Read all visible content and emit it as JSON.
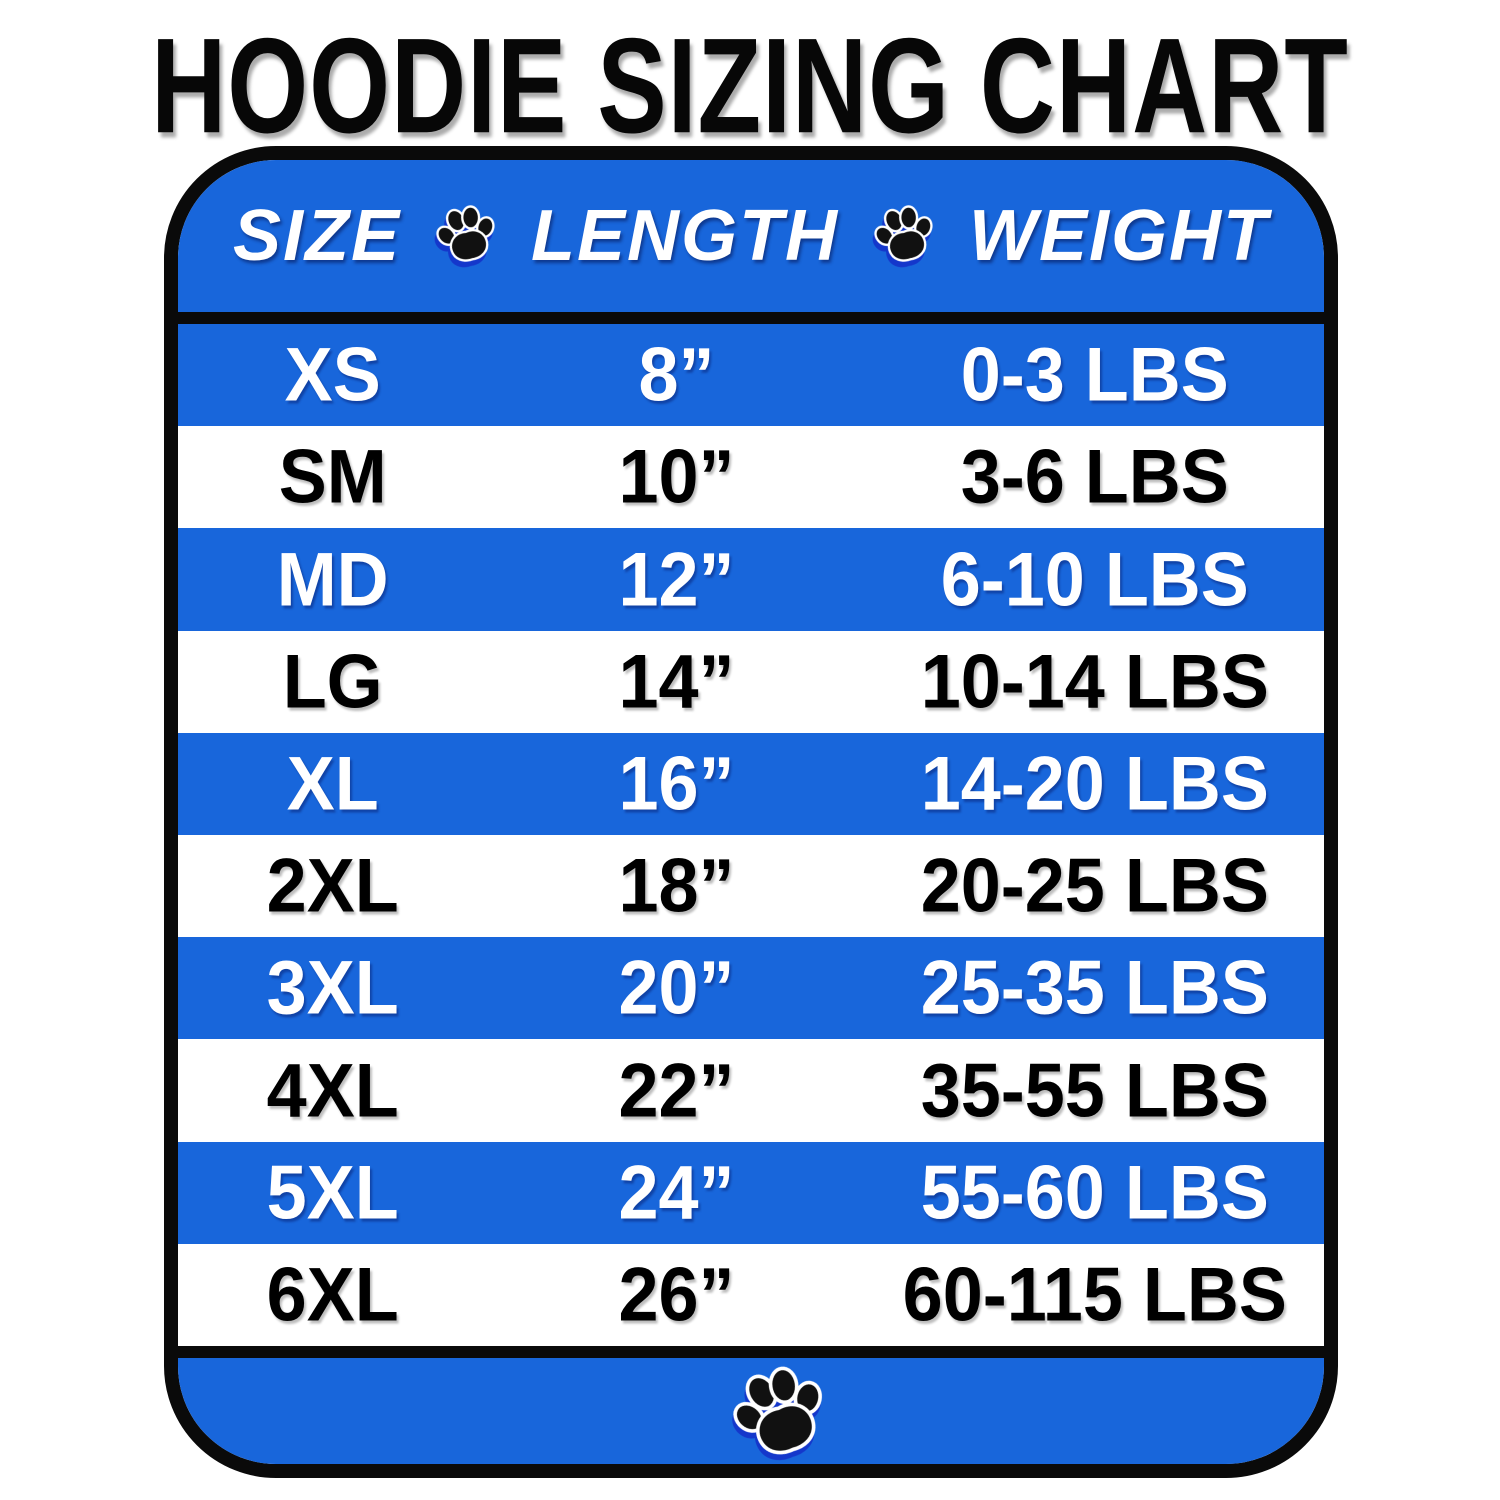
{
  "title": "HOODIE SIZING CHART",
  "chart_data": {
    "type": "table",
    "title": "HOODIE SIZING CHART",
    "columns": [
      "SIZE",
      "LENGTH",
      "WEIGHT"
    ],
    "rows": [
      {
        "size": "XS",
        "length": "8”",
        "weight": "0-3 LBS"
      },
      {
        "size": "SM",
        "length": "10”",
        "weight": "3-6 LBS"
      },
      {
        "size": "MD",
        "length": "12”",
        "weight": "6-10 LBS"
      },
      {
        "size": "LG",
        "length": "14”",
        "weight": "10-14 LBS"
      },
      {
        "size": "XL",
        "length": "16”",
        "weight": "14-20 LBS"
      },
      {
        "size": "2XL",
        "length": "18”",
        "weight": "20-25 LBS"
      },
      {
        "size": "3XL",
        "length": "20”",
        "weight": "25-35 LBS"
      },
      {
        "size": "4XL",
        "length": "22”",
        "weight": "35-55 LBS"
      },
      {
        "size": "5XL",
        "length": "24”",
        "weight": "55-60 LBS"
      },
      {
        "size": "6XL",
        "length": "26”",
        "weight": "60-115 LBS"
      }
    ],
    "row_stripe_pattern": "alternating blue/white starting with blue",
    "legend": "none",
    "grid": "off"
  },
  "icons": {
    "paw": "paw-icon"
  },
  "colors": {
    "accent_blue": "#1866DB",
    "text_on_blue": "#FFFFFF",
    "text_on_white": "#000000",
    "border_black": "#0A0A0A",
    "paw_shadow_blue": "#1010BE"
  }
}
